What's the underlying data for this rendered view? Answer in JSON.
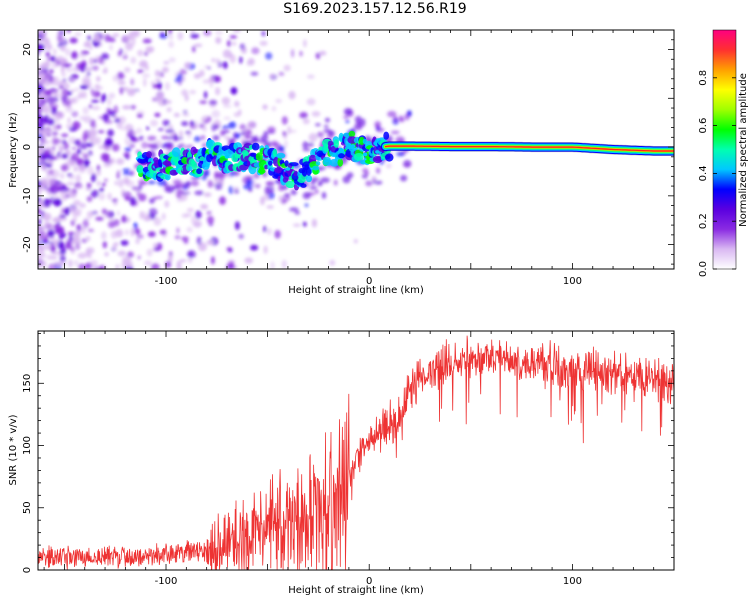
{
  "title": "S169.2023.157.12.56.R19",
  "chart_data": [
    {
      "type": "heatmap",
      "xlabel": "Height of straight line (km)",
      "ylabel": "Frequency (Hz)",
      "xlim": [
        -163,
        150
      ],
      "ylim": [
        -25,
        24
      ],
      "x_ticks": [
        -100,
        0,
        100
      ],
      "y_ticks": [
        -20,
        -10,
        0,
        10,
        20
      ],
      "colorbar": {
        "label": "Normalized spectral amplitude",
        "range": [
          0,
          1
        ],
        "ticks": [
          0.0,
          0.2,
          0.4,
          0.6,
          0.8
        ],
        "colors": [
          "#ffffff",
          "#d9b8f2",
          "#8a2be2",
          "#5a00e0",
          "#0000ff",
          "#00c8ff",
          "#00ffb0",
          "#00ff00",
          "#a0ff00",
          "#ffff00",
          "#ffa000",
          "#ff3030",
          "#ff0080"
        ]
      },
      "ridge": {
        "x": [
          -115,
          -105,
          -95,
          -85,
          -78,
          -70,
          -62,
          -55,
          -48,
          -42,
          -37,
          -32,
          -27,
          -22,
          -18,
          -14,
          -10,
          -6,
          -3,
          0,
          3,
          6,
          10,
          20,
          40,
          60,
          80,
          100,
          120,
          140,
          150
        ],
        "y": [
          -4,
          -4,
          -3.5,
          -3,
          -1,
          -2.5,
          -2,
          -2.5,
          -3,
          -4.5,
          -6,
          -5.5,
          -3,
          -1,
          -1.5,
          -0.5,
          0.5,
          0,
          -0.5,
          -1.5,
          -1,
          0,
          0.2,
          0.2,
          0.1,
          0.1,
          0,
          0,
          -0.5,
          -0.8,
          -0.8
        ]
      }
    },
    {
      "type": "line",
      "xlabel": "Height of straight line (km)",
      "ylabel": "SNR (10 * v/v)",
      "xlim": [
        -163,
        150
      ],
      "ylim": [
        0,
        192
      ],
      "x_ticks": [
        -100,
        0,
        100
      ],
      "y_ticks": [
        0,
        50,
        100,
        150
      ],
      "color": "#ee3333",
      "trend": {
        "x": [
          -163,
          -120,
          -100,
          -80,
          -70,
          -60,
          -50,
          -40,
          -30,
          -20,
          -10,
          -5,
          0,
          5,
          10,
          15,
          20,
          30,
          40,
          60,
          80,
          100,
          120,
          140,
          150
        ],
        "y": [
          10,
          11,
          13,
          16,
          20,
          25,
          32,
          38,
          42,
          48,
          70,
          95,
          105,
          112,
          118,
          122,
          145,
          162,
          168,
          170,
          168,
          162,
          158,
          153,
          152
        ]
      }
    }
  ]
}
